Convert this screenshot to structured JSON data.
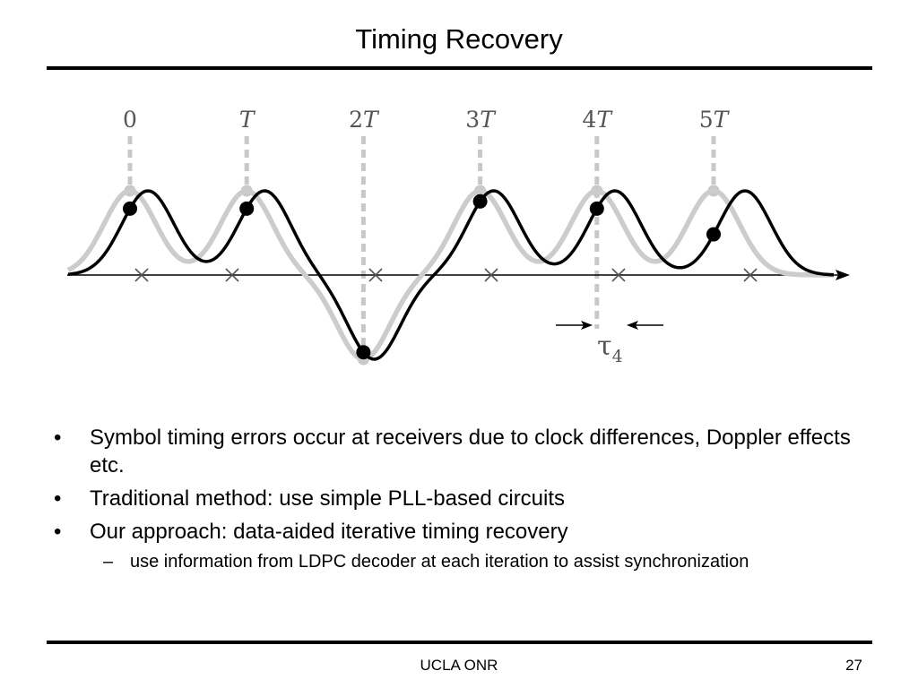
{
  "slide": {
    "title": "Timing Recovery",
    "footer_center": "UCLA ONR",
    "page_number": "27"
  },
  "diagram": {
    "sample_labels": [
      {
        "prefix": "",
        "var": "",
        "plain": "0"
      },
      {
        "prefix": "",
        "var": "T",
        "plain": ""
      },
      {
        "prefix": "2",
        "var": "T",
        "plain": ""
      },
      {
        "prefix": "3",
        "var": "T",
        "plain": ""
      },
      {
        "prefix": "4",
        "var": "T",
        "plain": ""
      },
      {
        "prefix": "5",
        "var": "T",
        "plain": ""
      }
    ],
    "offset_label": "τ",
    "offset_subscript": "4",
    "colors": {
      "ideal_waveform": "#cccccc",
      "received_waveform": "#000000",
      "sample_lines": "#c8c8c8",
      "axis": "#000000"
    }
  },
  "bullets": [
    {
      "text": "Symbol timing errors occur at receivers due to clock differences, Doppler effects etc.",
      "sub": []
    },
    {
      "text": "Traditional method: use simple PLL-based circuits",
      "sub": []
    },
    {
      "text": "Our approach: data-aided iterative timing recovery",
      "sub": [
        "use information from LDPC decoder at each iteration to assist synchronization"
      ]
    }
  ]
}
